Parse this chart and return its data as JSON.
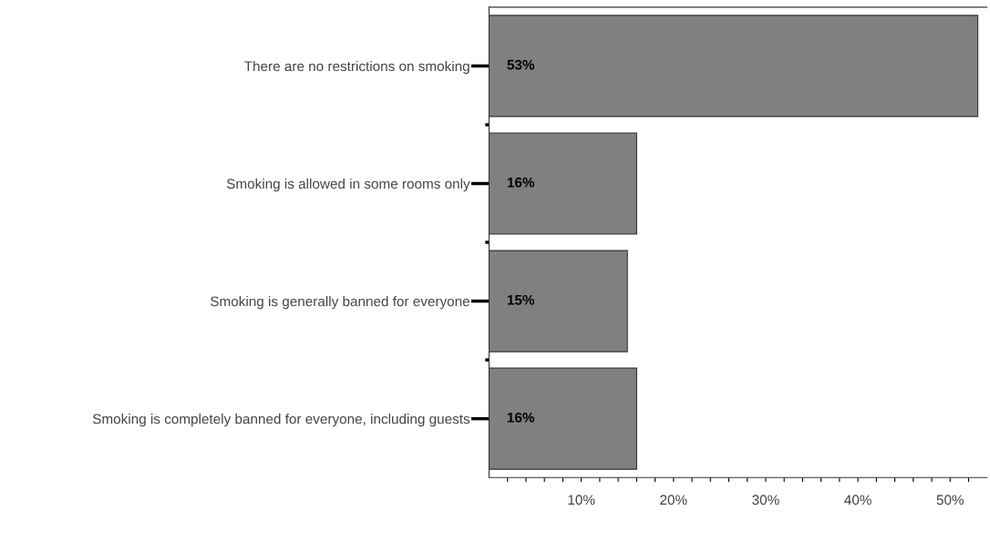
{
  "chart_data": {
    "type": "bar",
    "orientation": "horizontal",
    "categories": [
      "There are no restrictions on smoking",
      "Smoking is allowed in some rooms only",
      "Smoking is generally banned for everyone",
      "Smoking is completely banned for everyone, including guests"
    ],
    "values": [
      53,
      16,
      15,
      16
    ],
    "value_labels": [
      "53%",
      "16%",
      "15%",
      "16%"
    ],
    "color": "#808080",
    "xlim": [
      0,
      54
    ],
    "xticks": [
      {
        "value": 2,
        "label": null
      },
      {
        "value": 4,
        "label": null
      },
      {
        "value": 6,
        "label": null
      },
      {
        "value": 8,
        "label": null
      },
      {
        "value": 10,
        "label": "10%"
      },
      {
        "value": 12,
        "label": null
      },
      {
        "value": 14,
        "label": null
      },
      {
        "value": 16,
        "label": null
      },
      {
        "value": 18,
        "label": null
      },
      {
        "value": 20,
        "label": "20%"
      },
      {
        "value": 22,
        "label": null
      },
      {
        "value": 24,
        "label": null
      },
      {
        "value": 26,
        "label": null
      },
      {
        "value": 28,
        "label": null
      },
      {
        "value": 30,
        "label": "30%"
      },
      {
        "value": 32,
        "label": null
      },
      {
        "value": 34,
        "label": null
      },
      {
        "value": 36,
        "label": null
      },
      {
        "value": 38,
        "label": null
      },
      {
        "value": 40,
        "label": "40%"
      },
      {
        "value": 42,
        "label": null
      },
      {
        "value": 44,
        "label": null
      },
      {
        "value": 46,
        "label": null
      },
      {
        "value": 48,
        "label": null
      },
      {
        "value": 50,
        "label": "50%"
      },
      {
        "value": 52,
        "label": null
      }
    ],
    "grid": false,
    "legend": false
  }
}
